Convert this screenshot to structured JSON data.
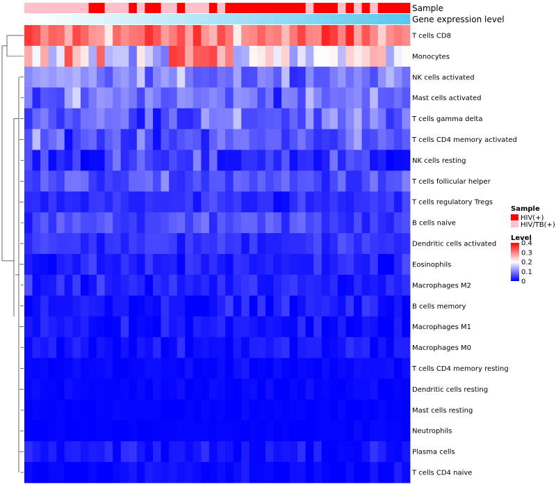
{
  "chart_data": {
    "type": "heatmap",
    "title": "",
    "n_samples": 48,
    "annotations": [
      {
        "name": "Sample",
        "categories": [
          "HIV(+)",
          "HIV/TB(+)"
        ],
        "colors": {
          "HIV(+)": "#ff0000",
          "HIV/TB(+)": "#ffc0cb"
        },
        "values": [
          "HIV/TB(+)",
          "HIV/TB(+)",
          "HIV/TB(+)",
          "HIV/TB(+)",
          "HIV/TB(+)",
          "HIV/TB(+)",
          "HIV/TB(+)",
          "HIV/TB(+)",
          "HIV(+)",
          "HIV(+)",
          "HIV/TB(+)",
          "HIV/TB(+)",
          "HIV/TB(+)",
          "HIV(+)",
          "HIV/TB(+)",
          "HIV(+)",
          "HIV(+)",
          "HIV/TB(+)",
          "HIV/TB(+)",
          "HIV(+)",
          "HIV/TB(+)",
          "HIV/TB(+)",
          "HIV/TB(+)",
          "HIV(+)",
          "HIV/TB(+)",
          "HIV(+)",
          "HIV(+)",
          "HIV(+)",
          "HIV(+)",
          "HIV(+)",
          "HIV(+)",
          "HIV(+)",
          "HIV(+)",
          "HIV(+)",
          "HIV(+)",
          "HIV/TB(+)",
          "HIV(+)",
          "HIV(+)",
          "HIV(+)",
          "HIV/TB(+)",
          "HIV(+)",
          "HIV/TB(+)",
          "HIV(+)",
          "HIV/TB(+)",
          "HIV(+)",
          "HIV(+)",
          "HIV(+)",
          "HIV(+)"
        ]
      },
      {
        "name": "Gene expression level",
        "type": "gradient",
        "low_color": "#ffffff",
        "high_color": "#5ac8ee",
        "values": [
          0.0,
          0.02,
          0.04,
          0.06,
          0.09,
          0.11,
          0.13,
          0.15,
          0.17,
          0.19,
          0.21,
          0.23,
          0.26,
          0.28,
          0.3,
          0.32,
          0.34,
          0.36,
          0.38,
          0.4,
          0.43,
          0.45,
          0.47,
          0.49,
          0.51,
          0.53,
          0.55,
          0.57,
          0.6,
          0.62,
          0.64,
          0.66,
          0.68,
          0.7,
          0.72,
          0.74,
          0.77,
          0.79,
          0.81,
          0.83,
          0.85,
          0.87,
          0.89,
          0.91,
          0.94,
          0.96,
          0.98,
          1.0
        ]
      }
    ],
    "rows": [
      {
        "label": "T cells CD8",
        "mean": 0.3,
        "sd": 0.06
      },
      {
        "label": "Monocytes",
        "mean": 0.2,
        "sd": 0.08
      },
      {
        "label": "NK cells activated",
        "mean": 0.1,
        "sd": 0.04
      },
      {
        "label": "Mast cells activated",
        "mean": 0.09,
        "sd": 0.04
      },
      {
        "label": "T cells gamma delta",
        "mean": 0.08,
        "sd": 0.05
      },
      {
        "label": "T cells CD4 memory activated",
        "mean": 0.07,
        "sd": 0.04
      },
      {
        "label": "NK cells resting",
        "mean": 0.04,
        "sd": 0.04
      },
      {
        "label": "T cells follicular helper",
        "mean": 0.06,
        "sd": 0.03
      },
      {
        "label": "T cells regulatory  Tregs",
        "mean": 0.03,
        "sd": 0.02
      },
      {
        "label": "B cells naive",
        "mean": 0.055,
        "sd": 0.03
      },
      {
        "label": "Dendritic cells activated",
        "mean": 0.04,
        "sd": 0.02
      },
      {
        "label": "Eosinophils",
        "mean": 0.025,
        "sd": 0.02
      },
      {
        "label": "Macrophages M2",
        "mean": 0.025,
        "sd": 0.02
      },
      {
        "label": "B cells memory",
        "mean": 0.02,
        "sd": 0.02
      },
      {
        "label": "Macrophages M1",
        "mean": 0.015,
        "sd": 0.02
      },
      {
        "label": "Macrophages M0",
        "mean": 0.015,
        "sd": 0.02
      },
      {
        "label": "T cells CD4 memory resting",
        "mean": 0.005,
        "sd": 0.008
      },
      {
        "label": "Dendritic cells resting",
        "mean": 0.005,
        "sd": 0.008
      },
      {
        "label": "Mast cells resting",
        "mean": 0.002,
        "sd": 0.004
      },
      {
        "label": "Neutrophils",
        "mean": 0.002,
        "sd": 0.004
      },
      {
        "label": "Plasma cells",
        "mean": 0.015,
        "sd": 0.02
      },
      {
        "label": "T cells CD4 naive",
        "mean": 0.006,
        "sd": 0.015
      }
    ],
    "color_scale": {
      "name": "Level",
      "min": 0,
      "max": 0.4,
      "ticks": [
        {
          "value": 0.4,
          "label": "0.4"
        },
        {
          "value": 0.3,
          "label": "0.3"
        },
        {
          "value": 0.2,
          "label": "0.2"
        },
        {
          "value": 0.1,
          "label": "0.1"
        },
        {
          "value": 0,
          "label": "0"
        }
      ],
      "stops": [
        {
          "value": 0,
          "color": "#0000ff"
        },
        {
          "value": 0.2,
          "color": "#ffffff"
        },
        {
          "value": 0.4,
          "color": "#ff0000"
        }
      ]
    },
    "legend": {
      "placement": "right",
      "sample_title": "Sample",
      "sample_entries": [
        "HIV(+)",
        "HIV/TB(+)"
      ],
      "level_title": "Level"
    },
    "row_dendrogram": "left",
    "column_dendrogram": "none"
  }
}
